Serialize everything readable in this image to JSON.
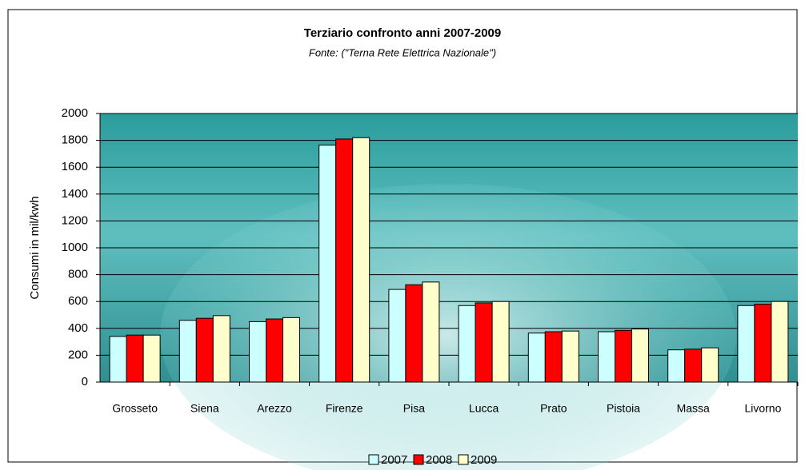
{
  "chart_data": {
    "type": "bar",
    "title": "Terziario confronto anni 2007-2009",
    "subtitle": "Fonte: (\"Terna Rete Elettrica Nazionale\")",
    "y_label": "Consumi in mil/kwh",
    "categories": [
      "Grosseto",
      "Siena",
      "Arezzo",
      "Firenze",
      "Pisa",
      "Lucca",
      "Prato",
      "Pistoia",
      "Massa",
      "Livorno"
    ],
    "series": [
      {
        "name": "2007",
        "color": "#ccffff",
        "values": [
          340,
          460,
          450,
          1765,
          690,
          570,
          365,
          375,
          240,
          570
        ]
      },
      {
        "name": "2008",
        "color": "#ff0000",
        "values": [
          350,
          475,
          470,
          1810,
          725,
          590,
          375,
          385,
          245,
          580
        ]
      },
      {
        "name": "2009",
        "color": "#ffffcc",
        "values": [
          350,
          495,
          480,
          1820,
          745,
          600,
          380,
          395,
          255,
          600
        ]
      }
    ],
    "ylim": [
      0,
      2000
    ],
    "yticks": [
      0,
      200,
      400,
      600,
      800,
      1000,
      1200,
      1400,
      1600,
      1800,
      2000
    ],
    "grid": true,
    "legend": "bottom"
  }
}
